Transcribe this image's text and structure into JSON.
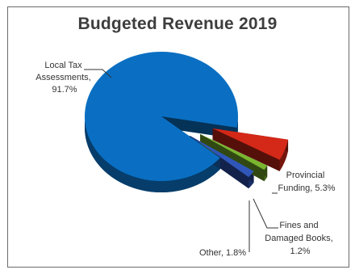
{
  "chart_data": {
    "type": "pie",
    "title": "Budgeted Revenue 2019",
    "slices": [
      {
        "label_lines": [
          "Local Tax",
          "Assessments,",
          "91.7%"
        ],
        "value": 91.7,
        "color": "#0a6fc2",
        "exploded": false
      },
      {
        "label_lines": [
          "Provincial",
          "Funding, 5.3%"
        ],
        "value": 5.3,
        "color": "#d42818",
        "exploded": true
      },
      {
        "label_lines": [
          "Fines and",
          "Damaged Books,",
          "1.2%"
        ],
        "value": 1.2,
        "color": "#7ab52e",
        "exploded": true
      },
      {
        "label_lines": [
          "Other, 1.8%"
        ],
        "value": 1.8,
        "color": "#2f56b8",
        "exploded": true
      }
    ],
    "legend": "none",
    "style": "3d-exploded"
  }
}
